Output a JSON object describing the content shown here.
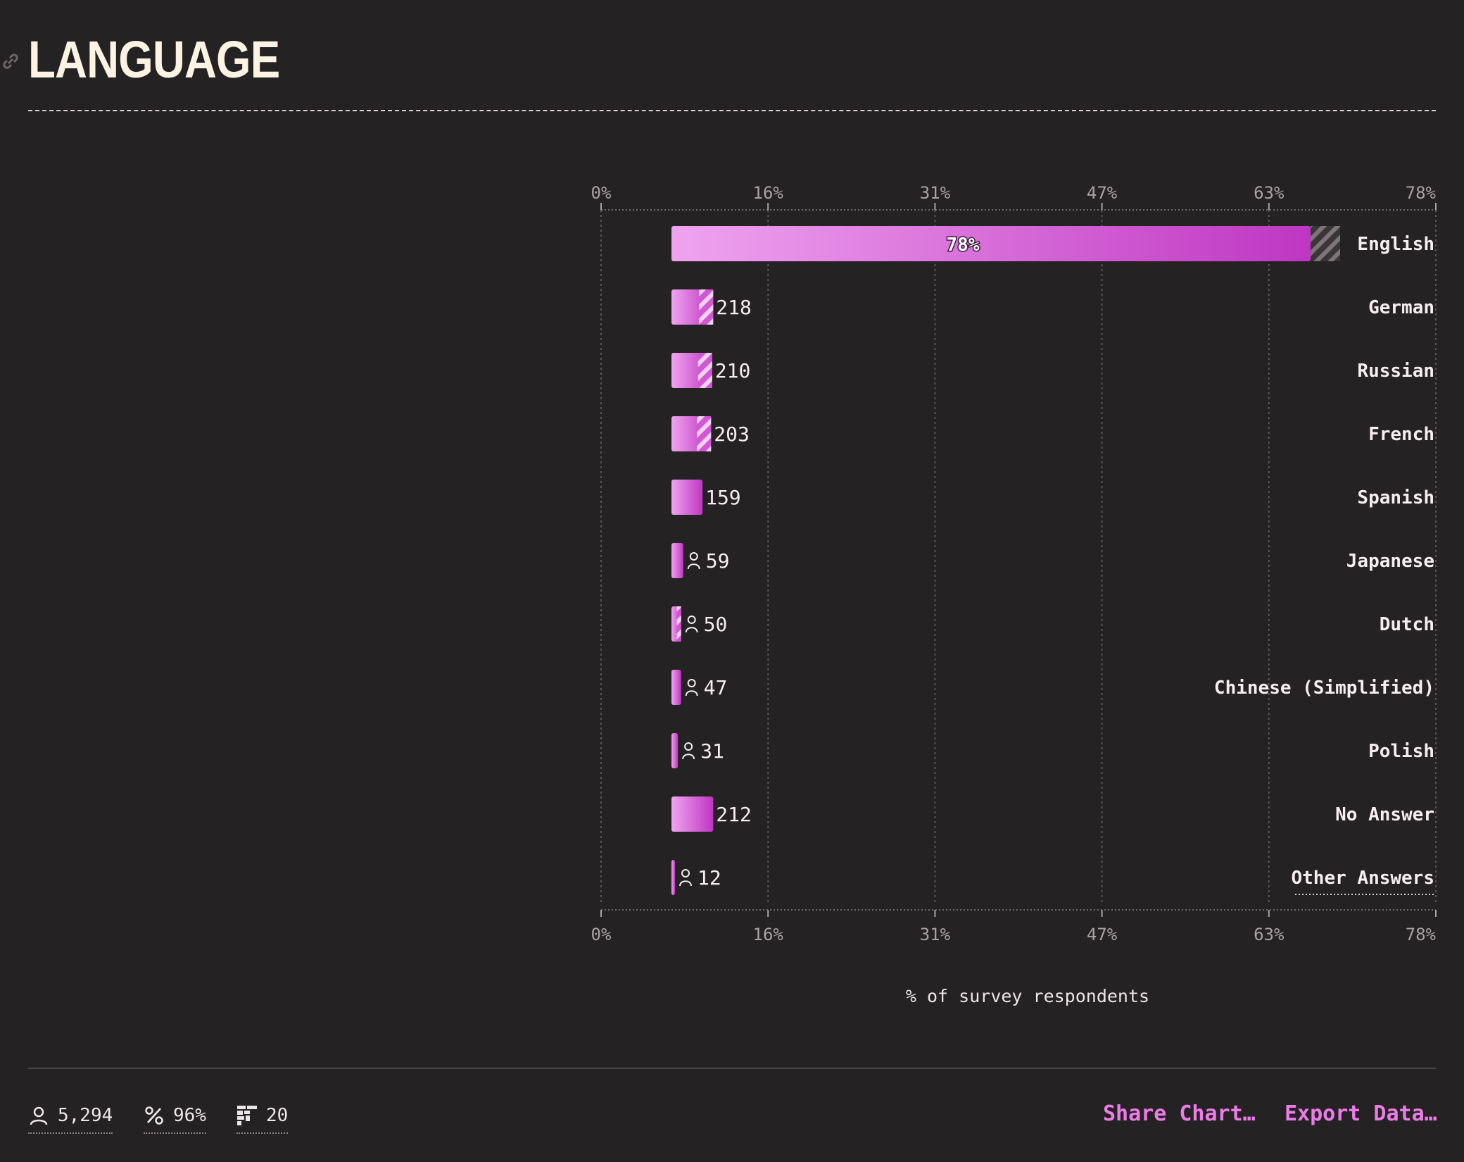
{
  "header": {
    "title": "LANGUAGE"
  },
  "chart_data": {
    "type": "bar",
    "orientation": "horizontal",
    "x_ticks": [
      "0%",
      "16%",
      "31%",
      "47%",
      "63%",
      "78%"
    ],
    "xlim": [
      0,
      78
    ],
    "xlabel": "% of survey respondents",
    "categories": [
      "English",
      "German",
      "Russian",
      "French",
      "Spanish",
      "Japanese",
      "Dutch",
      "Chinese (Simplified)",
      "Polish",
      "No Answer",
      "Other Answers"
    ],
    "values_pct": [
      78,
      3.9,
      3.8,
      3.7,
      2.9,
      1.1,
      0.9,
      0.9,
      0.6,
      3.9,
      0.2
    ],
    "counts": [
      null,
      218,
      210,
      203,
      159,
      59,
      50,
      47,
      31,
      212,
      12
    ],
    "value_labels": [
      "78%",
      "218",
      "210",
      "203",
      "159",
      "59",
      "50",
      "47",
      "31",
      "212",
      "12"
    ],
    "bar_color_start": "#efa4ef",
    "bar_color_end": "#bf36c2"
  },
  "footer": {
    "respondents": "5,294",
    "completion": "96%",
    "questions": "20",
    "share_label": "Share Chart…",
    "export_label": "Export Data…"
  }
}
